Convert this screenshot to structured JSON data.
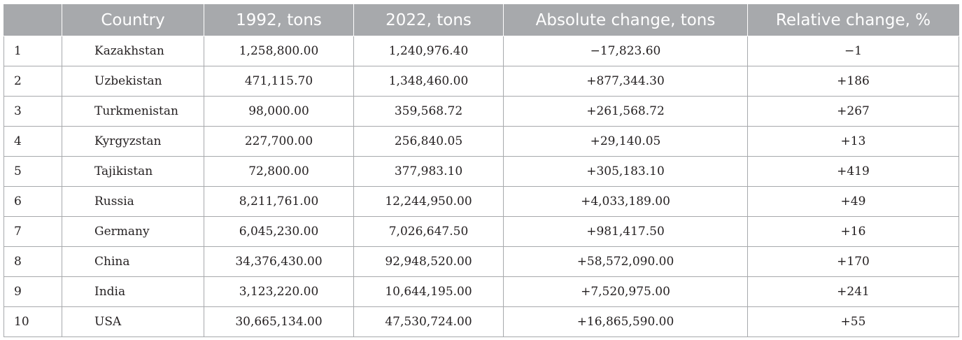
{
  "table": {
    "headers": [
      "",
      "Country",
      "1992, tons",
      "2022, tons",
      "Absolute change, tons",
      "Relative change, %"
    ],
    "rows": [
      {
        "index": "1",
        "country": "Kazakhstan",
        "y1992": "1,258,800.00",
        "y2022": "1,240,976.40",
        "abs_change": "−17,823.60",
        "rel_change": "−1"
      },
      {
        "index": "2",
        "country": "Uzbekistan",
        "y1992": "471,115.70",
        "y2022": "1,348,460.00",
        "abs_change": "+877,344.30",
        "rel_change": "+186"
      },
      {
        "index": "3",
        "country": "Turkmenistan",
        "y1992": "98,000.00",
        "y2022": "359,568.72",
        "abs_change": "+261,568.72",
        "rel_change": "+267"
      },
      {
        "index": "4",
        "country": "Kyrgyzstan",
        "y1992": "227,700.00",
        "y2022": "256,840.05",
        "abs_change": "+29,140.05",
        "rel_change": "+13"
      },
      {
        "index": "5",
        "country": "Tajikistan",
        "y1992": "72,800.00",
        "y2022": "377,983.10",
        "abs_change": "+305,183.10",
        "rel_change": "+419"
      },
      {
        "index": "6",
        "country": "Russia",
        "y1992": "8,211,761.00",
        "y2022": "12,244,950.00",
        "abs_change": "+4,033,189.00",
        "rel_change": "+49"
      },
      {
        "index": "7",
        "country": "Germany",
        "y1992": "6,045,230.00",
        "y2022": "7,026,647.50",
        "abs_change": "+981,417.50",
        "rel_change": "+16"
      },
      {
        "index": "8",
        "country": "China",
        "y1992": "34,376,430.00",
        "y2022": "92,948,520.00",
        "abs_change": "+58,572,090.00",
        "rel_change": "+170"
      },
      {
        "index": "9",
        "country": "India",
        "y1992": "3,123,220.00",
        "y2022": "10,644,195.00",
        "abs_change": "+7,520,975.00",
        "rel_change": "+241"
      },
      {
        "index": "10",
        "country": "USA",
        "y1992": "30,665,134.00",
        "y2022": "47,530,724.00",
        "abs_change": "+16,865,590.00",
        "rel_change": "+55"
      }
    ]
  },
  "colors": {
    "header_bg": "#a7a9ac",
    "header_text": "#ffffff",
    "grid_line": "#a7a9ac",
    "body_text": "#231f20"
  }
}
